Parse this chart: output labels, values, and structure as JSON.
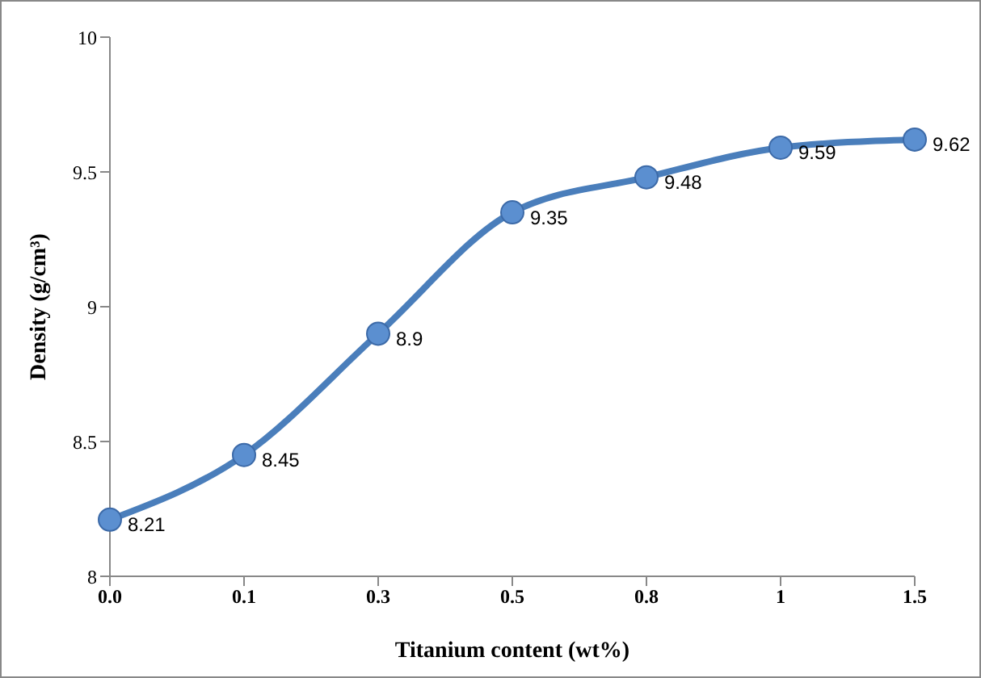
{
  "chart_data": {
    "type": "line",
    "xlabel": "Titanium content (wt%)",
    "ylabel": "Density (g/cm³)",
    "categories": [
      "0.0",
      "0.1",
      "0.3",
      "0.5",
      "0.8",
      "1",
      "1.5"
    ],
    "series": [
      {
        "color": "#4a7ebb",
        "values": [
          8.21,
          8.45,
          8.9,
          9.35,
          9.48,
          9.59,
          9.62
        ]
      }
    ],
    "ylim": [
      8,
      10
    ],
    "yticks": [
      8,
      8.5,
      9,
      9.5,
      10
    ],
    "grid": false,
    "legend": false,
    "marker": "circle",
    "line_style": "solid",
    "data_labels": true
  }
}
